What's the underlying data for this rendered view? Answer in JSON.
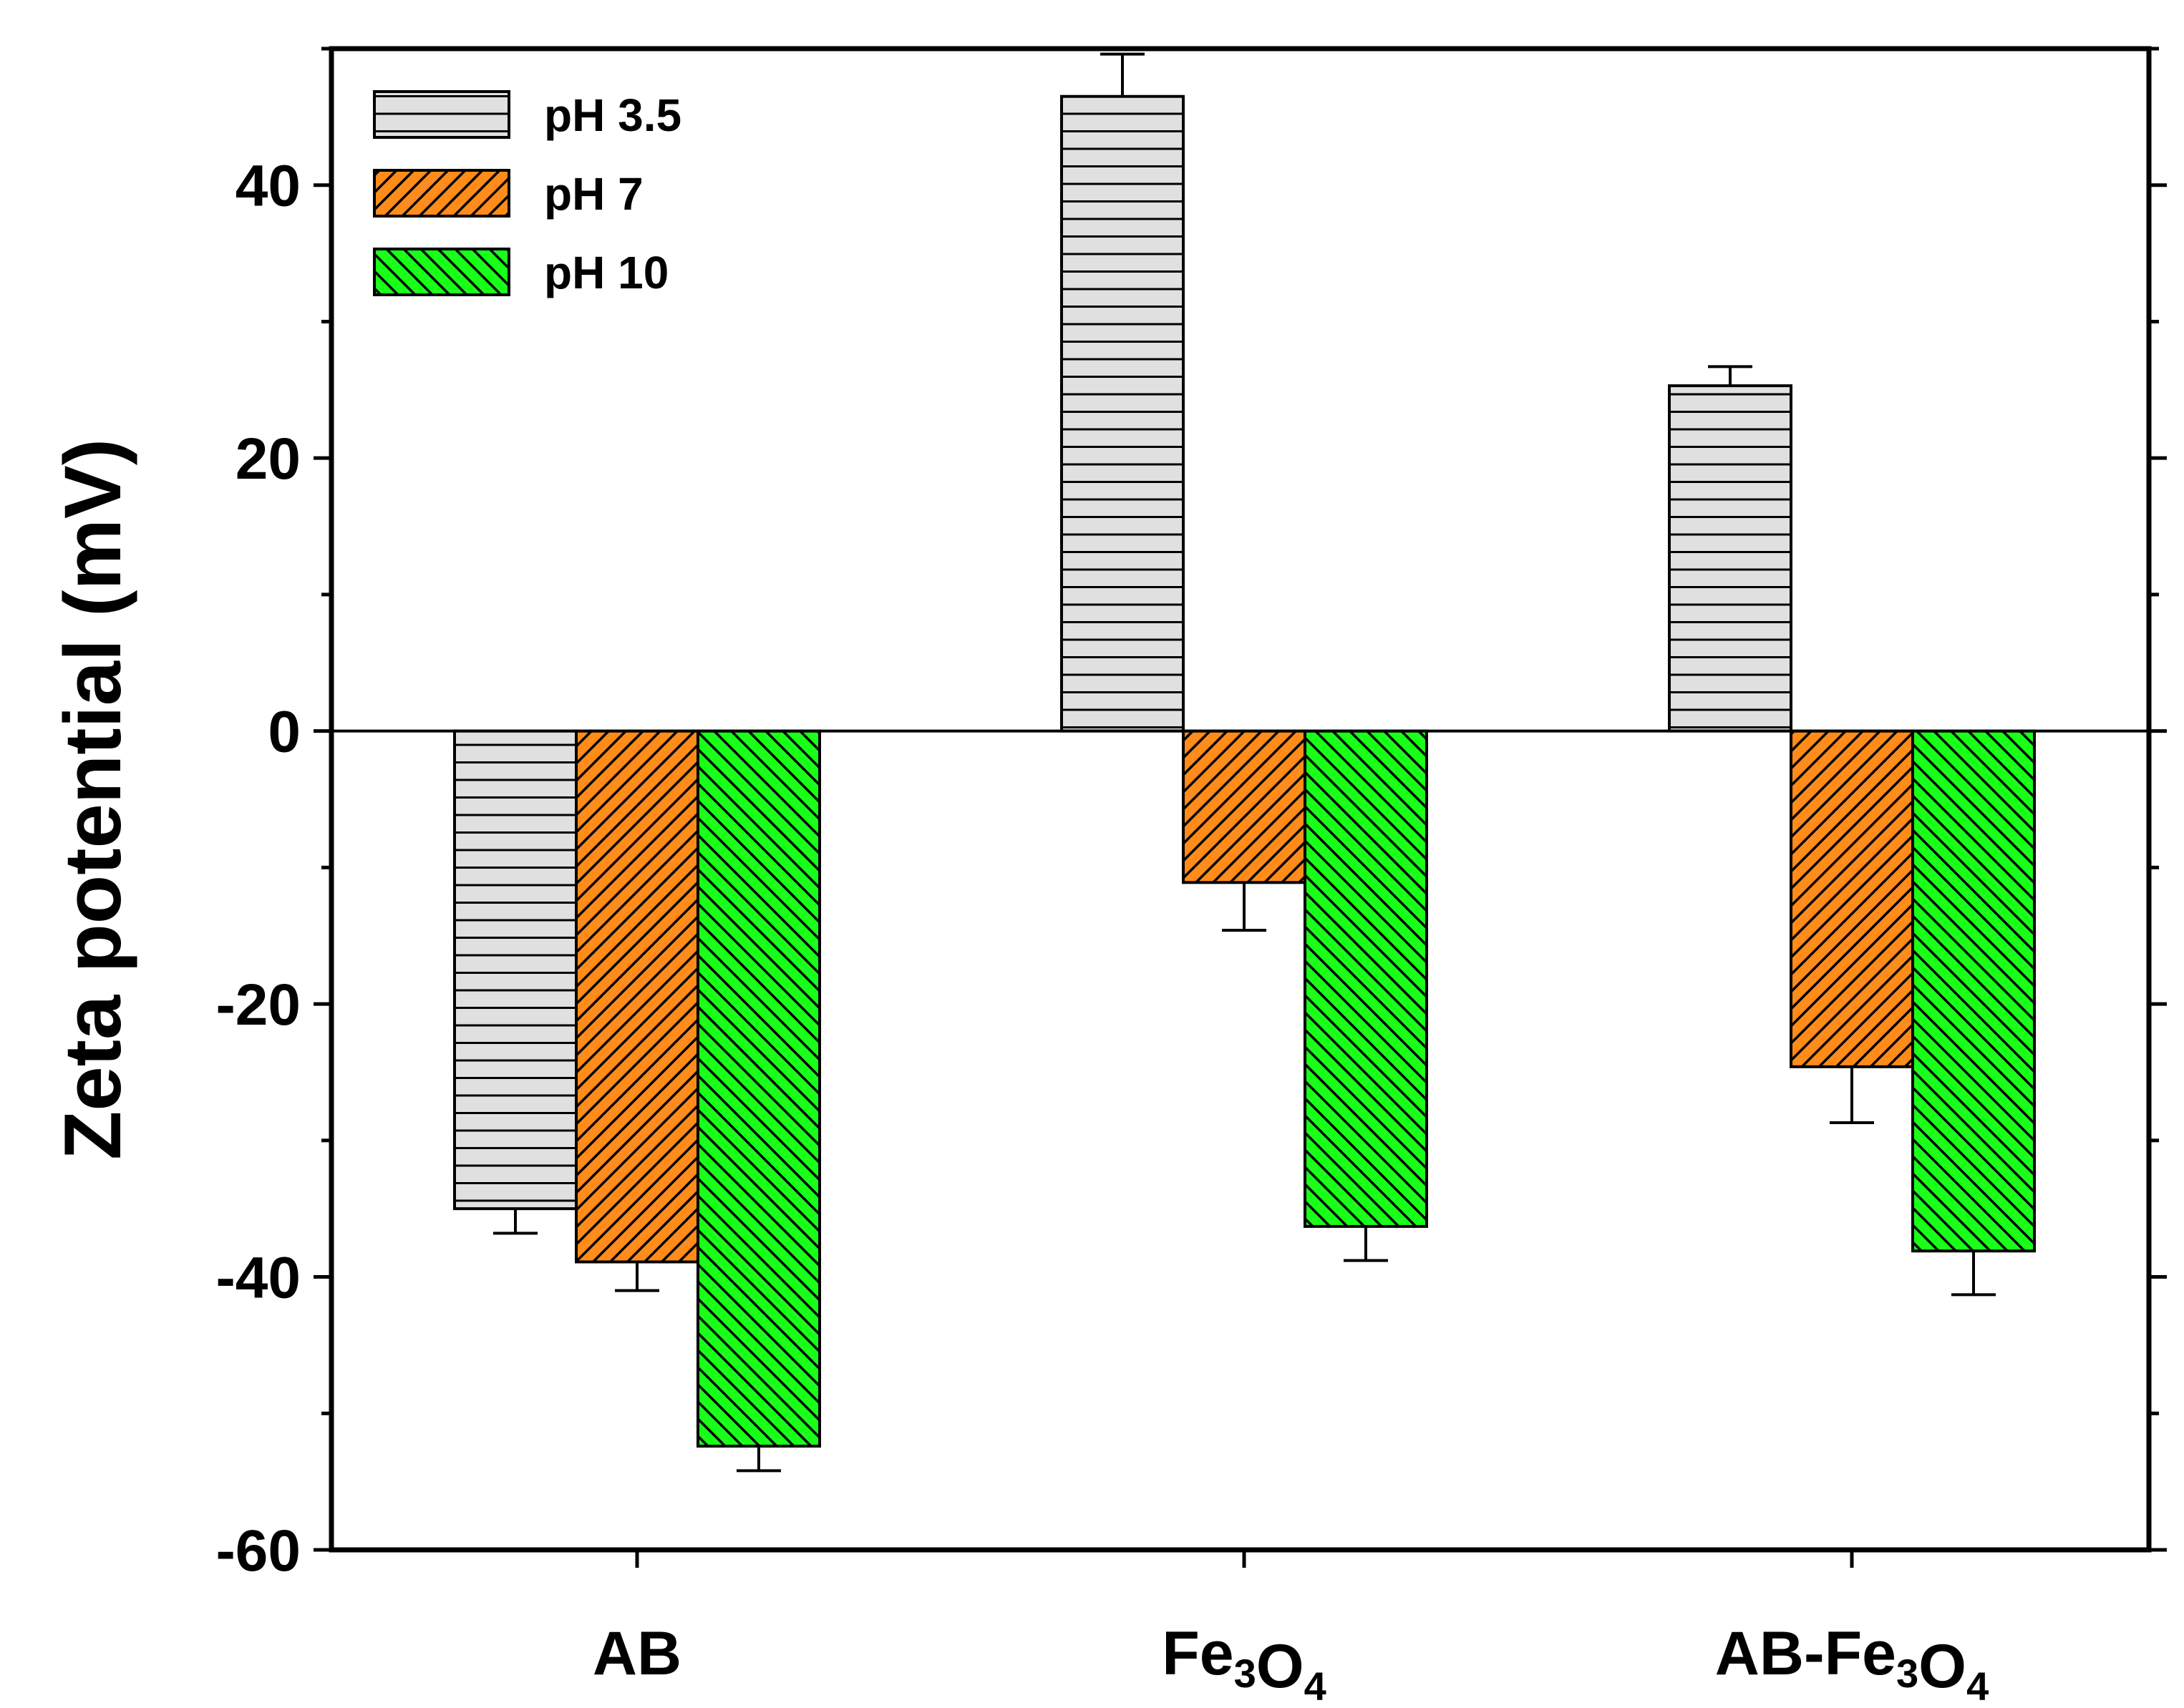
{
  "chart_data": {
    "type": "bar",
    "ylabel": "Zeta potential (mV)",
    "xlabel": "",
    "ylim": [
      -60,
      50
    ],
    "yticks": [
      -60,
      -40,
      -20,
      0,
      20,
      40
    ],
    "ytick_labels": [
      "-60",
      "-40",
      "-20",
      "0",
      "20",
      "40"
    ],
    "categories": [
      {
        "base": "AB",
        "parts": []
      },
      {
        "base": "",
        "parts": [
          [
            "Fe",
            "3"
          ],
          [
            "O",
            "4"
          ]
        ]
      },
      {
        "base": "AB-",
        "parts": [
          [
            "Fe",
            "3"
          ],
          [
            "O",
            "4"
          ]
        ]
      }
    ],
    "series": [
      {
        "name": "pH 3.5",
        "values": [
          -35.0,
          46.5,
          25.3
        ],
        "errors": [
          1.8,
          3.1,
          1.4
        ],
        "color": "#e0e0e0",
        "pattern": "horizontal"
      },
      {
        "name": "pH 7",
        "values": [
          -38.9,
          -11.1,
          -24.6
        ],
        "errors": [
          2.1,
          3.5,
          4.1
        ],
        "color": "#ff8c1a",
        "pattern": "diagonal-up"
      },
      {
        "name": "pH 10",
        "values": [
          -52.4,
          -36.3,
          -38.1
        ],
        "errors": [
          1.8,
          2.5,
          3.2
        ],
        "color": "#1aff1a",
        "pattern": "diagonal-down"
      }
    ],
    "legend_position": "top-left",
    "grid": false
  }
}
